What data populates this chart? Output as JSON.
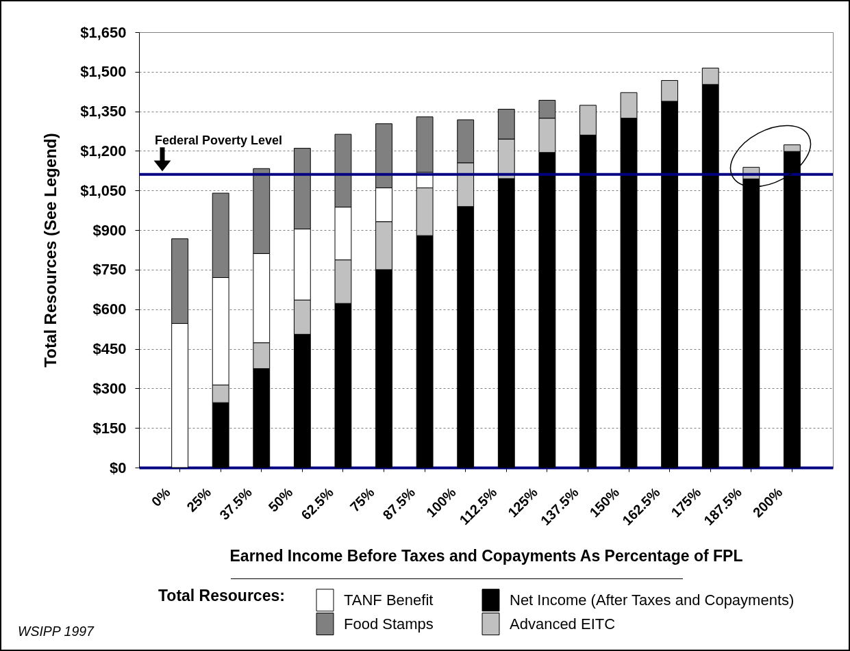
{
  "chart_data": {
    "type": "bar",
    "stacked": true,
    "xlabel": "Earned Income Before Taxes and Copayments As Percentage of FPL",
    "ylabel": "Total Resources (See Legend)",
    "legend_title": "Total Resources:",
    "legend": "bottom",
    "grid": "y",
    "categories": [
      "0%",
      "25%",
      "37.5%",
      "50%",
      "62.5%",
      "75%",
      "87.5%",
      "100%",
      "112.5%",
      "125%",
      "137.5%",
      "150%",
      "162.5%",
      "175%",
      "187.5%",
      "200%"
    ],
    "series": [
      {
        "name": "Net Income (After Taxes and Copayments)",
        "color": "#000000",
        "values": [
          null,
          246,
          375,
          505,
          622,
          750,
          879,
          989,
          1095,
          1194,
          1260,
          1324,
          1388,
          1452,
          1094,
          1198
        ]
      },
      {
        "name": "Advanced EITC",
        "color": "#c0c0c0",
        "values": [
          null,
          67,
          98,
          130,
          165,
          182,
          181,
          166,
          150,
          130,
          113,
          97,
          79,
          62,
          44,
          25
        ]
      },
      {
        "name": "TANF Benefit",
        "color": "#ffffff",
        "values": [
          546,
          407,
          338,
          269,
          200,
          128,
          59,
          null,
          null,
          null,
          null,
          null,
          null,
          null,
          null,
          null
        ]
      },
      {
        "name": "Food Stamps",
        "color": "#808080",
        "values": [
          321,
          320,
          322,
          306,
          276,
          243,
          210,
          163,
          113,
          68,
          null,
          null,
          null,
          null,
          null,
          null
        ]
      }
    ],
    "ylim": [
      0,
      1650
    ],
    "yticks": [
      {
        "value": 0,
        "label": "$0"
      },
      {
        "value": 150,
        "label": "$150"
      },
      {
        "value": 300,
        "label": "$300"
      },
      {
        "value": 450,
        "label": "$450"
      },
      {
        "value": 600,
        "label": "$600"
      },
      {
        "value": 750,
        "label": "$750"
      },
      {
        "value": 900,
        "label": "$900"
      },
      {
        "value": 1050,
        "label": "$1,050"
      },
      {
        "value": 1200,
        "label": "$1,200"
      },
      {
        "value": 1350,
        "label": "$1,350"
      },
      {
        "value": 1500,
        "label": "$1,500"
      },
      {
        "value": 1650,
        "label": "$1,650"
      }
    ],
    "ref_lines": [
      {
        "axis": "y",
        "value": 1111,
        "label": "Federal Poverty Level",
        "color": "#000080"
      }
    ],
    "annotations": [
      "WSIPP 1997"
    ]
  }
}
